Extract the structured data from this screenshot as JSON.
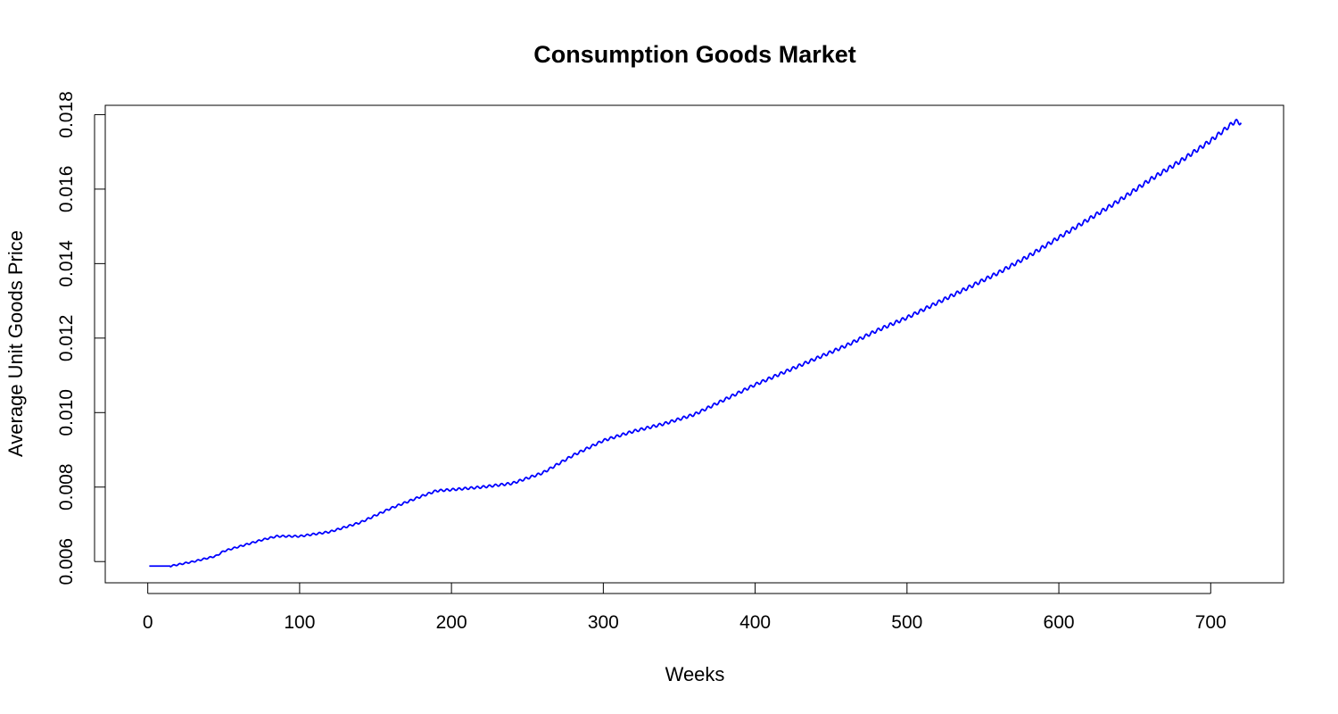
{
  "chart_data": {
    "type": "line",
    "title": "Consumption Goods Market",
    "xlabel": "Weeks",
    "ylabel": "Average Unit Goods Price",
    "xlim": [
      -28,
      748
    ],
    "ylim": [
      0.00543,
      0.01825
    ],
    "x_ticks": [
      0,
      100,
      200,
      300,
      400,
      500,
      600,
      700
    ],
    "x_tick_labels": [
      "0",
      "100",
      "200",
      "300",
      "400",
      "500",
      "600",
      "700"
    ],
    "y_ticks": [
      0.006,
      0.008,
      0.01,
      0.012,
      0.014,
      0.016,
      0.018
    ],
    "y_tick_labels": [
      "0.006",
      "0.008",
      "0.010",
      "0.012",
      "0.014",
      "0.016",
      "0.018"
    ],
    "grid": false,
    "series": [
      {
        "color": "#0000ff",
        "oscillation_period_weeks": 4,
        "oscillation_amplitude": 6e-05,
        "x": [
          1,
          15,
          30,
          45,
          50,
          60,
          75,
          85,
          100,
          120,
          140,
          160,
          180,
          190,
          200,
          220,
          240,
          260,
          280,
          300,
          320,
          340,
          360,
          380,
          400,
          420,
          440,
          460,
          480,
          500,
          520,
          540,
          560,
          580,
          600,
          620,
          640,
          660,
          680,
          700,
          716,
          720
        ],
        "y": [
          0.00588,
          0.00588,
          0.006,
          0.00615,
          0.00628,
          0.0064,
          0.00658,
          0.00668,
          0.00668,
          0.0068,
          0.00705,
          0.00743,
          0.00775,
          0.0079,
          0.00793,
          0.008,
          0.0081,
          0.00838,
          0.00885,
          0.00925,
          0.0095,
          0.0097,
          0.00995,
          0.01035,
          0.01075,
          0.0111,
          0.01145,
          0.0118,
          0.0122,
          0.01255,
          0.01295,
          0.01335,
          0.01375,
          0.0142,
          0.0147,
          0.0152,
          0.0157,
          0.01625,
          0.01675,
          0.0173,
          0.01782,
          0.01778
        ]
      }
    ]
  }
}
